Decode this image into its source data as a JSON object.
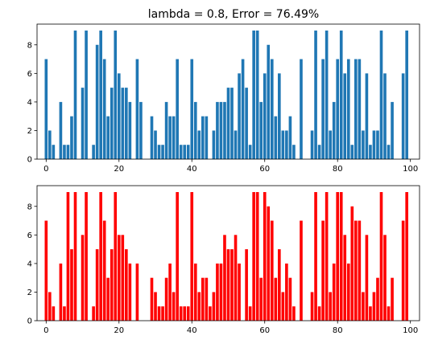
{
  "chart_data": [
    {
      "type": "bar",
      "title": "lambda = 0.8, Error = 76.49%",
      "color": "#1f77b4",
      "xlabel": "",
      "ylabel": "",
      "xlim": [
        -2.5,
        102.5
      ],
      "ylim": [
        0,
        9.45
      ],
      "xticks": [
        0,
        20,
        40,
        60,
        80,
        100
      ],
      "yticks": [
        0,
        2,
        4,
        6,
        8
      ],
      "x": [
        0,
        1,
        2,
        3,
        4,
        5,
        6,
        7,
        8,
        9,
        10,
        11,
        12,
        13,
        14,
        15,
        16,
        17,
        18,
        19,
        20,
        21,
        22,
        23,
        24,
        25,
        26,
        27,
        28,
        29,
        30,
        31,
        32,
        33,
        34,
        35,
        36,
        37,
        38,
        39,
        40,
        41,
        42,
        43,
        44,
        45,
        46,
        47,
        48,
        49,
        50,
        51,
        52,
        53,
        54,
        55,
        56,
        57,
        58,
        59,
        60,
        61,
        62,
        63,
        64,
        65,
        66,
        67,
        68,
        69,
        70,
        71,
        72,
        73,
        74,
        75,
        76,
        77,
        78,
        79,
        80,
        81,
        82,
        83,
        84,
        85,
        86,
        87,
        88,
        89,
        90,
        91,
        92,
        93,
        94,
        95,
        96,
        97,
        98,
        99
      ],
      "values": [
        7,
        2,
        1,
        0,
        4,
        1,
        1,
        3,
        9,
        0,
        5,
        9,
        0,
        1,
        8,
        9,
        7,
        3,
        5,
        9,
        6,
        5,
        5,
        4,
        0,
        7,
        4,
        0,
        0,
        3,
        2,
        1,
        1,
        4,
        3,
        3,
        7,
        1,
        1,
        1,
        7,
        4,
        2,
        3,
        3,
        0,
        2,
        4,
        4,
        4,
        5,
        5,
        2,
        6,
        7,
        5,
        1,
        9,
        9,
        4,
        6,
        8,
        7,
        3,
        6,
        2,
        2,
        3,
        1,
        0,
        7,
        0,
        0,
        2,
        9,
        1,
        7,
        9,
        2,
        4,
        7,
        9,
        6,
        7,
        1,
        7,
        7,
        2,
        6,
        1,
        2,
        2,
        9,
        6,
        1,
        4,
        0,
        0,
        6,
        9
      ]
    },
    {
      "type": "bar",
      "title": "",
      "color": "#ff0000",
      "xlabel": "",
      "ylabel": "",
      "xlim": [
        -2.5,
        102.5
      ],
      "ylim": [
        0,
        9.45
      ],
      "xticks": [
        0,
        20,
        40,
        60,
        80,
        100
      ],
      "yticks": [
        0,
        2,
        4,
        6,
        8
      ],
      "x": [
        0,
        1,
        2,
        3,
        4,
        5,
        6,
        7,
        8,
        9,
        10,
        11,
        12,
        13,
        14,
        15,
        16,
        17,
        18,
        19,
        20,
        21,
        22,
        23,
        24,
        25,
        26,
        27,
        28,
        29,
        30,
        31,
        32,
        33,
        34,
        35,
        36,
        37,
        38,
        39,
        40,
        41,
        42,
        43,
        44,
        45,
        46,
        47,
        48,
        49,
        50,
        51,
        52,
        53,
        54,
        55,
        56,
        57,
        58,
        59,
        60,
        61,
        62,
        63,
        64,
        65,
        66,
        67,
        68,
        69,
        70,
        71,
        72,
        73,
        74,
        75,
        76,
        77,
        78,
        79,
        80,
        81,
        82,
        83,
        84,
        85,
        86,
        87,
        88,
        89,
        90,
        91,
        92,
        93,
        94,
        95,
        96,
        97,
        98,
        99
      ],
      "values": [
        7,
        2,
        1,
        0,
        4,
        1,
        9,
        5,
        9,
        0,
        6,
        9,
        0,
        1,
        5,
        9,
        7,
        3,
        5,
        9,
        6,
        6,
        5,
        4,
        0,
        4,
        0,
        0,
        0,
        3,
        2,
        1,
        1,
        3,
        4,
        2,
        9,
        1,
        1,
        1,
        9,
        4,
        2,
        3,
        3,
        1,
        2,
        4,
        4,
        6,
        5,
        5,
        6,
        4,
        0,
        5,
        1,
        9,
        9,
        3,
        9,
        8,
        7,
        3,
        5,
        2,
        4,
        3,
        1,
        0,
        7,
        0,
        0,
        2,
        9,
        1,
        7,
        9,
        2,
        4,
        9,
        9,
        6,
        4,
        8,
        7,
        7,
        2,
        6,
        1,
        2,
        3,
        9,
        6,
        1,
        3,
        0,
        0,
        7,
        9
      ]
    }
  ]
}
